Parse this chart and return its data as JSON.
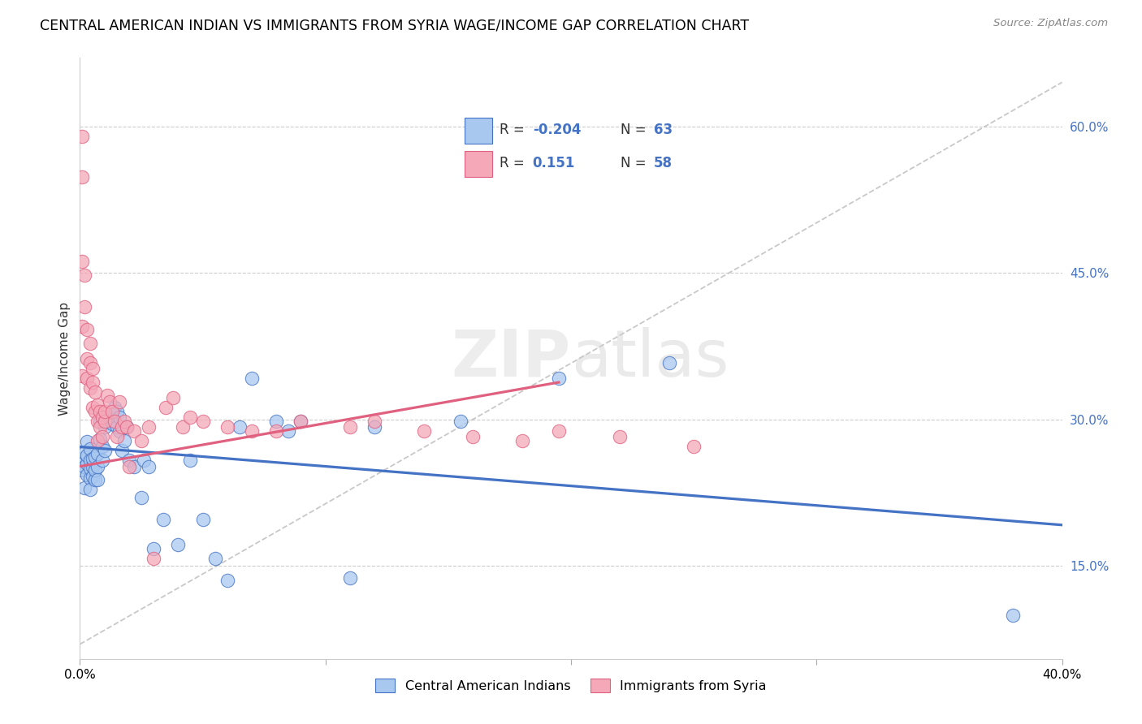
{
  "title": "CENTRAL AMERICAN INDIAN VS IMMIGRANTS FROM SYRIA WAGE/INCOME GAP CORRELATION CHART",
  "source": "Source: ZipAtlas.com",
  "ylabel": "Wage/Income Gap",
  "right_yticks": [
    "60.0%",
    "45.0%",
    "30.0%",
    "15.0%"
  ],
  "right_ytick_vals": [
    0.6,
    0.45,
    0.3,
    0.15
  ],
  "legend_label_blue": "Central American Indians",
  "legend_label_pink": "Immigrants from Syria",
  "blue_color": "#A8C8F0",
  "pink_color": "#F4A8B8",
  "blue_line_color": "#4472C4",
  "pink_line_color": "#E06080",
  "dashed_line_color": "#BBBBBB",
  "watermark_zip": "ZIP",
  "watermark_atlas": "atlas",
  "xmin": 0.0,
  "xmax": 0.4,
  "ymin": 0.055,
  "ymax": 0.67,
  "xtick_positions": [
    0.0,
    0.1,
    0.2,
    0.3,
    0.4
  ],
  "blue_trend_x": [
    0.0,
    0.4
  ],
  "blue_trend_y": [
    0.272,
    0.192
  ],
  "pink_trend_x": [
    0.0,
    0.195
  ],
  "pink_trend_y": [
    0.252,
    0.338
  ],
  "dashed_trend_x": [
    0.0,
    0.4
  ],
  "dashed_trend_y": [
    0.07,
    0.645
  ],
  "blue_dots_x": [
    0.001,
    0.001,
    0.002,
    0.002,
    0.002,
    0.003,
    0.003,
    0.003,
    0.003,
    0.004,
    0.004,
    0.004,
    0.004,
    0.004,
    0.005,
    0.005,
    0.005,
    0.006,
    0.006,
    0.006,
    0.007,
    0.007,
    0.007,
    0.008,
    0.008,
    0.009,
    0.009,
    0.01,
    0.01,
    0.011,
    0.012,
    0.013,
    0.014,
    0.015,
    0.015,
    0.016,
    0.016,
    0.017,
    0.018,
    0.019,
    0.02,
    0.022,
    0.025,
    0.026,
    0.028,
    0.03,
    0.034,
    0.04,
    0.045,
    0.05,
    0.055,
    0.06,
    0.065,
    0.07,
    0.08,
    0.085,
    0.09,
    0.11,
    0.12,
    0.155,
    0.195,
    0.24,
    0.38
  ],
  "blue_dots_y": [
    0.248,
    0.26,
    0.252,
    0.266,
    0.23,
    0.243,
    0.255,
    0.263,
    0.277,
    0.24,
    0.25,
    0.258,
    0.27,
    0.228,
    0.242,
    0.252,
    0.26,
    0.238,
    0.248,
    0.262,
    0.238,
    0.252,
    0.265,
    0.28,
    0.298,
    0.258,
    0.272,
    0.268,
    0.292,
    0.298,
    0.302,
    0.296,
    0.312,
    0.292,
    0.308,
    0.288,
    0.302,
    0.268,
    0.278,
    0.292,
    0.258,
    0.252,
    0.22,
    0.258,
    0.252,
    0.168,
    0.198,
    0.172,
    0.258,
    0.198,
    0.158,
    0.135,
    0.292,
    0.342,
    0.298,
    0.288,
    0.298,
    0.138,
    0.292,
    0.298,
    0.342,
    0.358,
    0.1
  ],
  "pink_dots_x": [
    0.001,
    0.001,
    0.001,
    0.001,
    0.001,
    0.002,
    0.002,
    0.003,
    0.003,
    0.003,
    0.004,
    0.004,
    0.004,
    0.005,
    0.005,
    0.005,
    0.006,
    0.006,
    0.007,
    0.007,
    0.007,
    0.008,
    0.008,
    0.009,
    0.009,
    0.01,
    0.01,
    0.011,
    0.012,
    0.013,
    0.014,
    0.015,
    0.016,
    0.017,
    0.018,
    0.019,
    0.02,
    0.022,
    0.025,
    0.028,
    0.03,
    0.035,
    0.038,
    0.042,
    0.045,
    0.05,
    0.06,
    0.07,
    0.08,
    0.09,
    0.11,
    0.12,
    0.14,
    0.16,
    0.18,
    0.195,
    0.22,
    0.25
  ],
  "pink_dots_y": [
    0.59,
    0.548,
    0.462,
    0.395,
    0.345,
    0.448,
    0.415,
    0.392,
    0.362,
    0.342,
    0.378,
    0.358,
    0.332,
    0.352,
    0.338,
    0.312,
    0.328,
    0.308,
    0.315,
    0.298,
    0.278,
    0.308,
    0.292,
    0.302,
    0.282,
    0.298,
    0.308,
    0.325,
    0.318,
    0.308,
    0.298,
    0.282,
    0.318,
    0.292,
    0.298,
    0.292,
    0.252,
    0.288,
    0.278,
    0.292,
    0.158,
    0.312,
    0.322,
    0.292,
    0.302,
    0.298,
    0.292,
    0.288,
    0.288,
    0.298,
    0.292,
    0.298,
    0.288,
    0.282,
    0.278,
    0.288,
    0.282,
    0.272
  ]
}
